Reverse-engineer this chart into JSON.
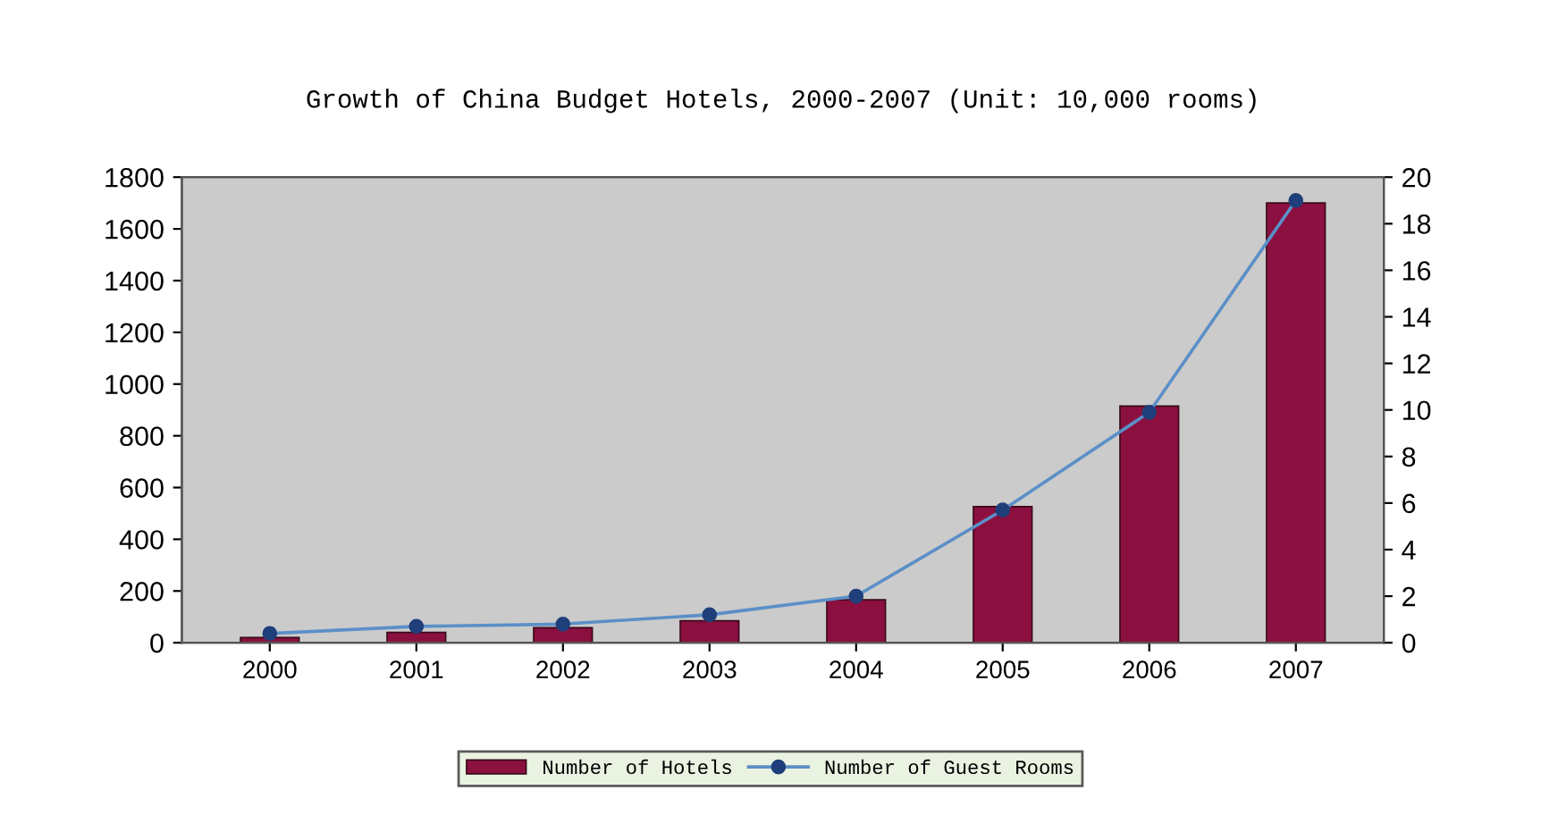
{
  "chart_data": {
    "type": "bar",
    "title": "Growth of China Budget Hotels, 2000-2007 (Unit: 10,000 rooms)",
    "categories": [
      "2000",
      "2001",
      "2002",
      "2003",
      "2004",
      "2005",
      "2006",
      "2007"
    ],
    "series": [
      {
        "name": "Number of Hotels",
        "color": "#8b1040",
        "values": [
          20,
          40,
          58,
          85,
          166,
          526,
          915,
          1700
        ]
      },
      {
        "name": "Number of Guest Rooms",
        "type": "line",
        "axis": "y2",
        "color": "#5b8fc7",
        "values": [
          0.4,
          0.7,
          0.8,
          1.2,
          2.0,
          5.7,
          9.9,
          19.0
        ]
      }
    ],
    "ylim": [
      0,
      1800
    ],
    "yticks": [
      0,
      200,
      400,
      600,
      800,
      1000,
      1200,
      1400,
      1600,
      1800
    ],
    "y2lim": [
      0,
      20
    ],
    "y2ticks": [
      0,
      2,
      4,
      6,
      8,
      10,
      12,
      14,
      16,
      18,
      20
    ],
    "marker": "circle",
    "line_style": "solid",
    "grid": false,
    "legend": "bottom"
  }
}
